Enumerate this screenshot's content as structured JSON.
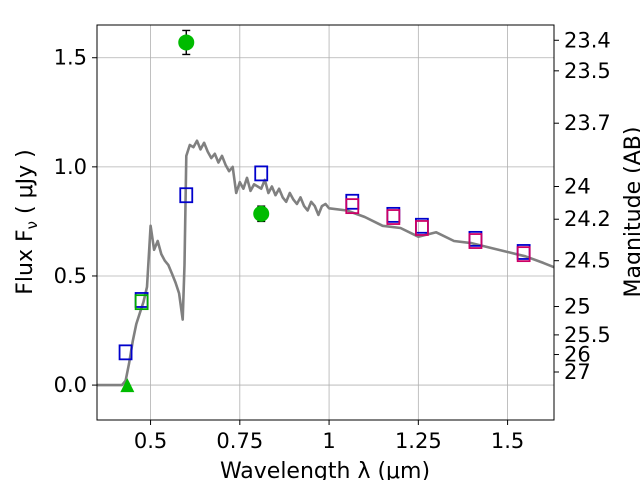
{
  "chart_data": {
    "type": "scatter",
    "title": "",
    "xlabel": "Wavelength  λ (μm)",
    "ylabel": "Flux  F_ν  ( μJy )",
    "ylabel_right": "Magnitude (AB)",
    "xlim": [
      0.35,
      1.63
    ],
    "ylim": [
      -0.16,
      1.65
    ],
    "grid": true,
    "x_ticks": [
      0.5,
      0.75,
      1.0,
      1.25,
      1.5
    ],
    "x_tick_labels": [
      "0.5",
      "0.75",
      "1",
      "1.25",
      "1.5"
    ],
    "y_ticks": [
      0.0,
      0.5,
      1.0,
      1.5
    ],
    "y_tick_labels": [
      "0.0",
      "0.5",
      "1.0",
      "1.5"
    ],
    "right_ticks": [
      {
        "label": "23.4",
        "flux": 1.58
      },
      {
        "label": "23.5",
        "flux": 1.44
      },
      {
        "label": "23.7",
        "flux": 1.2
      },
      {
        "label": "24",
        "flux": 0.91
      },
      {
        "label": "24.2",
        "flux": 0.76
      },
      {
        "label": "24.5",
        "flux": 0.57
      },
      {
        "label": "25",
        "flux": 0.36
      },
      {
        "label": "25.5",
        "flux": 0.23
      },
      {
        "label": "26",
        "flux": 0.14
      },
      {
        "label": "27",
        "flux": 0.06
      }
    ],
    "model_sed": {
      "color": "#808080",
      "x": [
        0.35,
        0.4,
        0.42,
        0.43,
        0.44,
        0.45,
        0.46,
        0.47,
        0.48,
        0.49,
        0.5,
        0.51,
        0.52,
        0.53,
        0.54,
        0.55,
        0.56,
        0.57,
        0.58,
        0.59,
        0.595,
        0.6,
        0.61,
        0.62,
        0.63,
        0.64,
        0.65,
        0.66,
        0.67,
        0.68,
        0.69,
        0.7,
        0.71,
        0.72,
        0.73,
        0.74,
        0.75,
        0.76,
        0.77,
        0.78,
        0.79,
        0.8,
        0.81,
        0.82,
        0.83,
        0.84,
        0.85,
        0.86,
        0.87,
        0.88,
        0.89,
        0.9,
        0.91,
        0.92,
        0.93,
        0.94,
        0.95,
        0.96,
        0.97,
        0.98,
        0.99,
        1.0,
        1.05,
        1.1,
        1.15,
        1.2,
        1.25,
        1.3,
        1.35,
        1.4,
        1.45,
        1.5,
        1.55,
        1.6,
        1.63
      ],
      "y": [
        0.0,
        0.0,
        0.0,
        0.02,
        0.1,
        0.2,
        0.28,
        0.33,
        0.38,
        0.45,
        0.73,
        0.62,
        0.66,
        0.6,
        0.57,
        0.55,
        0.51,
        0.47,
        0.42,
        0.3,
        0.55,
        1.05,
        1.1,
        1.09,
        1.12,
        1.08,
        1.11,
        1.07,
        1.04,
        1.06,
        1.02,
        1.05,
        1.01,
        0.98,
        1.0,
        0.88,
        0.93,
        0.9,
        0.95,
        0.89,
        0.92,
        0.91,
        0.9,
        0.94,
        0.88,
        0.91,
        0.87,
        0.9,
        0.86,
        0.84,
        0.88,
        0.85,
        0.83,
        0.86,
        0.82,
        0.8,
        0.84,
        0.82,
        0.78,
        0.82,
        0.83,
        0.81,
        0.8,
        0.77,
        0.73,
        0.72,
        0.68,
        0.7,
        0.66,
        0.65,
        0.63,
        0.61,
        0.59,
        0.56,
        0.54
      ]
    },
    "series": [
      {
        "name": "model photometry (blue squares)",
        "color": "#0000cc",
        "x": [
          0.43,
          0.475,
          0.6,
          0.81,
          1.065,
          1.18,
          1.26,
          1.41,
          1.545
        ],
        "y": [
          0.15,
          0.39,
          0.87,
          0.97,
          0.84,
          0.78,
          0.73,
          0.67,
          0.61
        ]
      },
      {
        "name": "model photometry (magenta squares)",
        "color": "#cc0066",
        "x": [
          1.065,
          1.18,
          1.26,
          1.41,
          1.545
        ],
        "y": [
          0.82,
          0.77,
          0.72,
          0.66,
          0.6
        ]
      },
      {
        "name": "model photometry (green square)",
        "color": "#00aa00",
        "x": [
          0.475
        ],
        "y": [
          0.38
        ]
      },
      {
        "name": "observed detections",
        "color": "#00bb00",
        "x": [
          0.6,
          0.81
        ],
        "y": [
          1.57,
          0.785
        ],
        "yerr": [
          0.055,
          0.035
        ]
      },
      {
        "name": "upper limit",
        "color": "#00bb00",
        "x": [
          0.435
        ],
        "y": [
          0.0
        ],
        "yerr": [
          0.02
        ]
      }
    ]
  }
}
